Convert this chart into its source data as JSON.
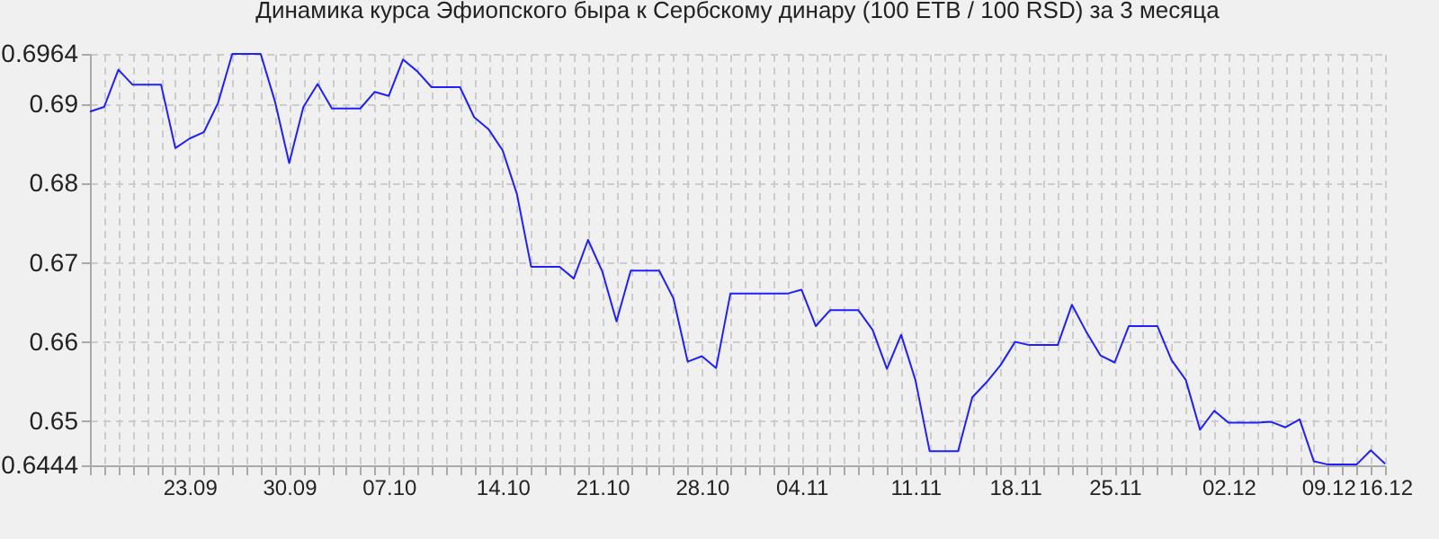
{
  "chart_data": {
    "type": "line",
    "title": "Динамика курса Эфиопского быра к Сербскому динару (100 ETB / 100 RSD) за 3 месяца",
    "categories": [
      null,
      null,
      null,
      null,
      null,
      null,
      null,
      "23.09",
      null,
      null,
      null,
      null,
      null,
      null,
      "30.09",
      null,
      null,
      null,
      null,
      null,
      null,
      "07.10",
      null,
      null,
      null,
      null,
      null,
      null,
      null,
      "14.10",
      null,
      null,
      null,
      null,
      null,
      null,
      "21.10",
      null,
      null,
      null,
      null,
      null,
      null,
      "28.10",
      null,
      null,
      null,
      null,
      null,
      null,
      "04.11",
      null,
      null,
      null,
      null,
      null,
      null,
      null,
      "11.11",
      null,
      null,
      null,
      null,
      null,
      null,
      "18.11",
      null,
      null,
      null,
      null,
      null,
      null,
      "25.11",
      null,
      null,
      null,
      null,
      null,
      null,
      null,
      "02.12",
      null,
      null,
      null,
      null,
      null,
      null,
      "09.12",
      null,
      null,
      null,
      "16.12"
    ],
    "series": [
      {
        "color": "#2020ff",
        "values": [
          0.6891,
          0.6897,
          0.6944,
          0.6925,
          0.6925,
          0.6925,
          0.6845,
          0.6857,
          0.6865,
          0.6902,
          0.6964,
          0.6964,
          0.6964,
          0.6904,
          0.6826,
          0.6897,
          0.6926,
          0.6895,
          0.6895,
          0.6895,
          0.6916,
          0.6911,
          0.6957,
          0.6942,
          0.6922,
          0.6922,
          0.6922,
          0.6884,
          0.6869,
          0.6842,
          0.6787,
          0.6695,
          0.6695,
          0.6695,
          0.668,
          0.6729,
          0.6689,
          0.6626,
          0.669,
          0.669,
          0.669,
          0.6655,
          0.6575,
          0.6582,
          0.6567,
          0.6661,
          0.6661,
          0.6661,
          0.6661,
          0.6661,
          0.6666,
          0.662,
          0.664,
          0.664,
          0.664,
          0.6615,
          0.6566,
          0.6609,
          0.6552,
          0.6462,
          0.6462,
          0.6462,
          0.653,
          0.6549,
          0.6571,
          0.66,
          0.6596,
          0.6596,
          0.6596,
          0.6647,
          0.6613,
          0.6583,
          0.6574,
          0.662,
          0.662,
          0.662,
          0.6577,
          0.6552,
          0.6489,
          0.6513,
          0.6498,
          0.6498,
          0.6498,
          0.6499,
          0.6492,
          0.6502,
          0.6449,
          0.6445,
          0.6445,
          0.6445,
          0.6463,
          0.6446
        ]
      }
    ],
    "ylim": [
      0.6444,
      0.6964
    ],
    "yticks": [
      0.6444,
      0.65,
      0.66,
      0.67,
      0.68,
      0.69,
      0.6964
    ],
    "grid": true
  }
}
